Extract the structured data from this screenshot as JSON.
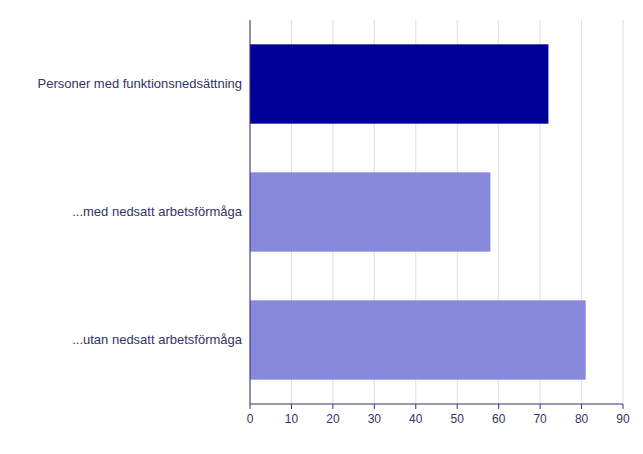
{
  "chart_data": {
    "type": "bar",
    "orientation": "horizontal",
    "categories": [
      "...utan nedsatt arbetsförmåga",
      "...med nedsatt arbetsförmåga",
      "Personer med funktionsnedsättning"
    ],
    "values": [
      81,
      58,
      72
    ],
    "colors": [
      "#8888dd",
      "#8888dd",
      "#000099"
    ],
    "xlim": [
      0,
      90
    ],
    "xticks": [
      0,
      10,
      20,
      30,
      40,
      50,
      60,
      70,
      80,
      90
    ],
    "grid": true
  }
}
